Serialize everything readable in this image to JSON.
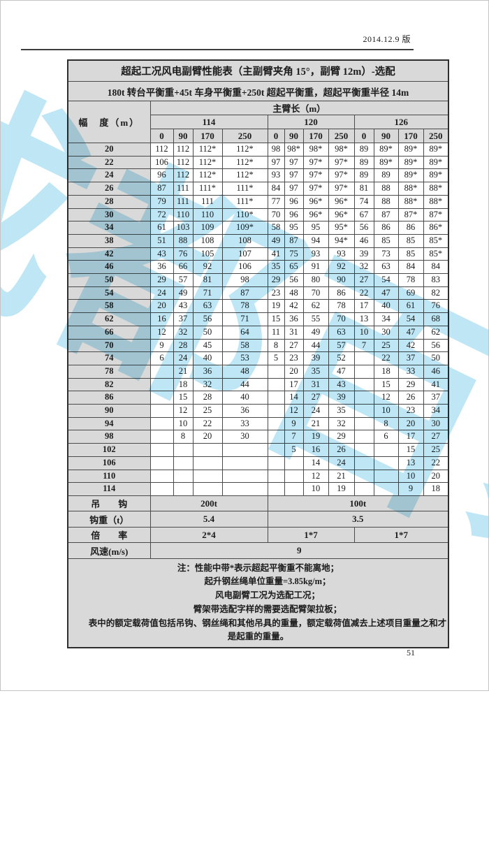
{
  "header": {
    "version": "2014.12.9 版"
  },
  "watermark": "成都百象吊装",
  "page_number": "51",
  "colors": {
    "header_bg": "#d9d9d9",
    "watermark": "#8fd4ee",
    "border": "#4a4a4a"
  },
  "table": {
    "title": "超起工况风电副臂性能表（主副臂夹角 15°，副臂 12m）-选配",
    "subtitle": "180t 转台平衡重+45t 车身平衡重+250t 超起平衡重，超起平衡重半径 14m",
    "radius_header": "幅　度（m）",
    "boom_header": "主臂长（m）",
    "groups": [
      "114",
      "120",
      "126"
    ],
    "sub_columns": [
      "0",
      "90",
      "170",
      "250"
    ],
    "rows": [
      {
        "radius": "20",
        "loads": [
          "112",
          "112",
          "112*",
          "112*",
          "98",
          "98*",
          "98*",
          "98*",
          "89",
          "89*",
          "89*",
          "89*"
        ]
      },
      {
        "radius": "22",
        "loads": [
          "106",
          "112",
          "112*",
          "112*",
          "97",
          "97",
          "97*",
          "97*",
          "89",
          "89*",
          "89*",
          "89*"
        ]
      },
      {
        "radius": "24",
        "loads": [
          "96",
          "112",
          "112*",
          "112*",
          "93",
          "97",
          "97*",
          "97*",
          "89",
          "89",
          "89*",
          "89*"
        ]
      },
      {
        "radius": "26",
        "loads": [
          "87",
          "111",
          "111*",
          "111*",
          "84",
          "97",
          "97*",
          "97*",
          "81",
          "88",
          "88*",
          "88*"
        ]
      },
      {
        "radius": "28",
        "loads": [
          "79",
          "111",
          "111",
          "111*",
          "77",
          "96",
          "96*",
          "96*",
          "74",
          "88",
          "88*",
          "88*"
        ]
      },
      {
        "radius": "30",
        "loads": [
          "72",
          "110",
          "110",
          "110*",
          "70",
          "96",
          "96*",
          "96*",
          "67",
          "87",
          "87*",
          "87*"
        ]
      },
      {
        "radius": "34",
        "loads": [
          "61",
          "103",
          "109",
          "109*",
          "58",
          "95",
          "95",
          "95*",
          "56",
          "86",
          "86",
          "86*"
        ]
      },
      {
        "radius": "38",
        "loads": [
          "51",
          "88",
          "108",
          "108",
          "49",
          "87",
          "94",
          "94*",
          "46",
          "85",
          "85",
          "85*"
        ]
      },
      {
        "radius": "42",
        "loads": [
          "43",
          "76",
          "105",
          "107",
          "41",
          "75",
          "93",
          "93",
          "39",
          "73",
          "85",
          "85*"
        ]
      },
      {
        "radius": "46",
        "loads": [
          "36",
          "66",
          "92",
          "106",
          "35",
          "65",
          "91",
          "92",
          "32",
          "63",
          "84",
          "84"
        ]
      },
      {
        "radius": "50",
        "loads": [
          "29",
          "57",
          "81",
          "98",
          "29",
          "56",
          "80",
          "90",
          "27",
          "54",
          "78",
          "83"
        ]
      },
      {
        "radius": "54",
        "loads": [
          "24",
          "49",
          "71",
          "87",
          "23",
          "48",
          "70",
          "86",
          "22",
          "47",
          "69",
          "82"
        ]
      },
      {
        "radius": "58",
        "loads": [
          "20",
          "43",
          "63",
          "78",
          "19",
          "42",
          "62",
          "78",
          "17",
          "40",
          "61",
          "76"
        ]
      },
      {
        "radius": "62",
        "loads": [
          "16",
          "37",
          "56",
          "71",
          "15",
          "36",
          "55",
          "70",
          "13",
          "34",
          "54",
          "68"
        ]
      },
      {
        "radius": "66",
        "loads": [
          "12",
          "32",
          "50",
          "64",
          "11",
          "31",
          "49",
          "63",
          "10",
          "30",
          "47",
          "62"
        ]
      },
      {
        "radius": "70",
        "loads": [
          "9",
          "28",
          "45",
          "58",
          "8",
          "27",
          "44",
          "57",
          "7",
          "25",
          "42",
          "56"
        ]
      },
      {
        "radius": "74",
        "loads": [
          "6",
          "24",
          "40",
          "53",
          "5",
          "23",
          "39",
          "52",
          "",
          "22",
          "37",
          "50"
        ]
      },
      {
        "radius": "78",
        "loads": [
          "",
          "21",
          "36",
          "48",
          "",
          "20",
          "35",
          "47",
          "",
          "18",
          "33",
          "46"
        ]
      },
      {
        "radius": "82",
        "loads": [
          "",
          "18",
          "32",
          "44",
          "",
          "17",
          "31",
          "43",
          "",
          "15",
          "29",
          "41"
        ]
      },
      {
        "radius": "86",
        "loads": [
          "",
          "15",
          "28",
          "40",
          "",
          "14",
          "27",
          "39",
          "",
          "12",
          "26",
          "37"
        ]
      },
      {
        "radius": "90",
        "loads": [
          "",
          "12",
          "25",
          "36",
          "",
          "12",
          "24",
          "35",
          "",
          "10",
          "23",
          "34"
        ]
      },
      {
        "radius": "94",
        "loads": [
          "",
          "10",
          "22",
          "33",
          "",
          "9",
          "21",
          "32",
          "",
          "8",
          "20",
          "30"
        ]
      },
      {
        "radius": "98",
        "loads": [
          "",
          "8",
          "20",
          "30",
          "",
          "7",
          "19",
          "29",
          "",
          "6",
          "17",
          "27"
        ]
      },
      {
        "radius": "102",
        "loads": [
          "",
          "",
          "",
          "",
          "",
          "5",
          "16",
          "26",
          "",
          "",
          "15",
          "25"
        ]
      },
      {
        "radius": "106",
        "loads": [
          "",
          "",
          "",
          "",
          "",
          "",
          "14",
          "24",
          "",
          "",
          "13",
          "22"
        ]
      },
      {
        "radius": "110",
        "loads": [
          "",
          "",
          "",
          "",
          "",
          "",
          "12",
          "21",
          "",
          "",
          "10",
          "20"
        ]
      },
      {
        "radius": "114",
        "loads": [
          "",
          "",
          "",
          "",
          "",
          "",
          "10",
          "19",
          "",
          "",
          "9",
          "18"
        ]
      }
    ],
    "footer": [
      {
        "label": "吊　　钩",
        "cells": [
          {
            "text": "200t",
            "span": 4
          },
          {
            "text": "100t",
            "span": 8
          }
        ]
      },
      {
        "label": "钩重（t）",
        "cells": [
          {
            "text": "5.4",
            "span": 4
          },
          {
            "text": "3.5",
            "span": 8
          }
        ]
      },
      {
        "label": "倍　　率",
        "cells": [
          {
            "text": "2*4",
            "span": 4
          },
          {
            "text": "1*7",
            "span": 4
          },
          {
            "text": "1*7",
            "span": 4
          }
        ]
      },
      {
        "label": "风速(m/s)",
        "cells": [
          {
            "text": "9",
            "span": 12
          }
        ]
      }
    ],
    "notes": [
      "注：性能中带*表示超起平衡重不能离地；",
      "起升钢丝绳单位重量=3.85kg/m；",
      "风电副臂工况为选配工况；",
      "臂架带选配字样的需要选配臂架拉板；",
      "表中的额定载荷值包括吊钩、钢丝绳和其他吊具的重量，额定载荷值减去上述项目重量之和才是起重的重量。"
    ]
  }
}
